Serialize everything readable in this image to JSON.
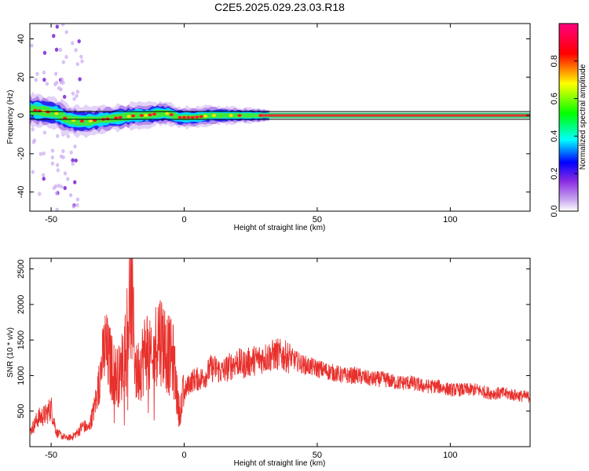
{
  "figure_title": "C2E5.2025.029.23.03.R18",
  "chart_data": [
    {
      "type": "heatmap",
      "panel": "spectrogram",
      "xlabel": "Height of straight line (km)",
      "ylabel": "Frequency (Hz)",
      "xlim": [
        -58,
        130
      ],
      "ylim": [
        -50,
        48
      ],
      "xticks": [
        -50,
        0,
        50,
        100
      ],
      "yticks": [
        -40,
        -20,
        0,
        20,
        40
      ],
      "grid": false,
      "colorbar": {
        "label": "Normalized spectral amplitude",
        "range": [
          0,
          1
        ],
        "ticks": [
          "0.0",
          "0.2",
          "0.4",
          "0.6",
          "0.8"
        ],
        "colors": [
          "#ffffff",
          "#8a2be2",
          "#0000ff",
          "#00ffff",
          "#00ff00",
          "#ffff00",
          "#ff0000",
          "#ff0080"
        ]
      },
      "ridge_frequency_track": [
        [
          -58,
          3
        ],
        [
          -52,
          2
        ],
        [
          -48,
          1
        ],
        [
          -44,
          -2
        ],
        [
          -40,
          -3
        ],
        [
          -36,
          -3
        ],
        [
          -30,
          -2
        ],
        [
          -24,
          -1
        ],
        [
          -18,
          0
        ],
        [
          -14,
          0
        ],
        [
          -10,
          1
        ],
        [
          -6,
          1
        ],
        [
          -2,
          -1
        ],
        [
          4,
          -1
        ],
        [
          10,
          0
        ],
        [
          20,
          0
        ],
        [
          30,
          0
        ],
        [
          130,
          0
        ]
      ],
      "horizontal_reference_lines_hz": [
        2,
        -2
      ]
    },
    {
      "type": "line",
      "panel": "snr",
      "xlabel": "Height of straight line (km)",
      "ylabel": "SNR (10 * v/v)",
      "xlim": [
        -58,
        130
      ],
      "ylim": [
        0,
        2650
      ],
      "xticks": [
        -50,
        0,
        50,
        100
      ],
      "yticks": [
        500,
        1000,
        1500,
        2000,
        2500
      ],
      "grid": false,
      "series": [
        {
          "color": "#e8302c",
          "x": [
            -58,
            -55,
            -52,
            -50,
            -48,
            -46,
            -44,
            -42,
            -40,
            -38,
            -36,
            -34,
            -32,
            -30,
            -28,
            -26,
            -24,
            -22,
            -20,
            -18,
            -16,
            -14,
            -12,
            -10,
            -8,
            -6,
            -4,
            -2,
            0,
            2,
            4,
            6,
            8,
            10,
            12,
            14,
            16,
            18,
            20,
            22,
            25,
            30,
            35,
            40,
            45,
            50,
            55,
            60,
            65,
            70,
            75,
            80,
            85,
            90,
            95,
            100,
            105,
            110,
            115,
            120,
            125,
            130
          ],
          "y": [
            200,
            400,
            450,
            550,
            200,
            150,
            120,
            140,
            200,
            300,
            250,
            500,
            900,
            1400,
            1200,
            1000,
            1000,
            1500,
            2200,
            1000,
            1200,
            1400,
            1100,
            1600,
            1500,
            1300,
            1200,
            500,
            750,
            900,
            950,
            950,
            1000,
            1100,
            1100,
            1050,
            1100,
            1150,
            1200,
            1150,
            1200,
            1250,
            1300,
            1250,
            1150,
            1100,
            1050,
            1000,
            1000,
            950,
            950,
            900,
            900,
            850,
            850,
            800,
            800,
            800,
            750,
            750,
            720,
            700
          ]
        }
      ]
    }
  ]
}
